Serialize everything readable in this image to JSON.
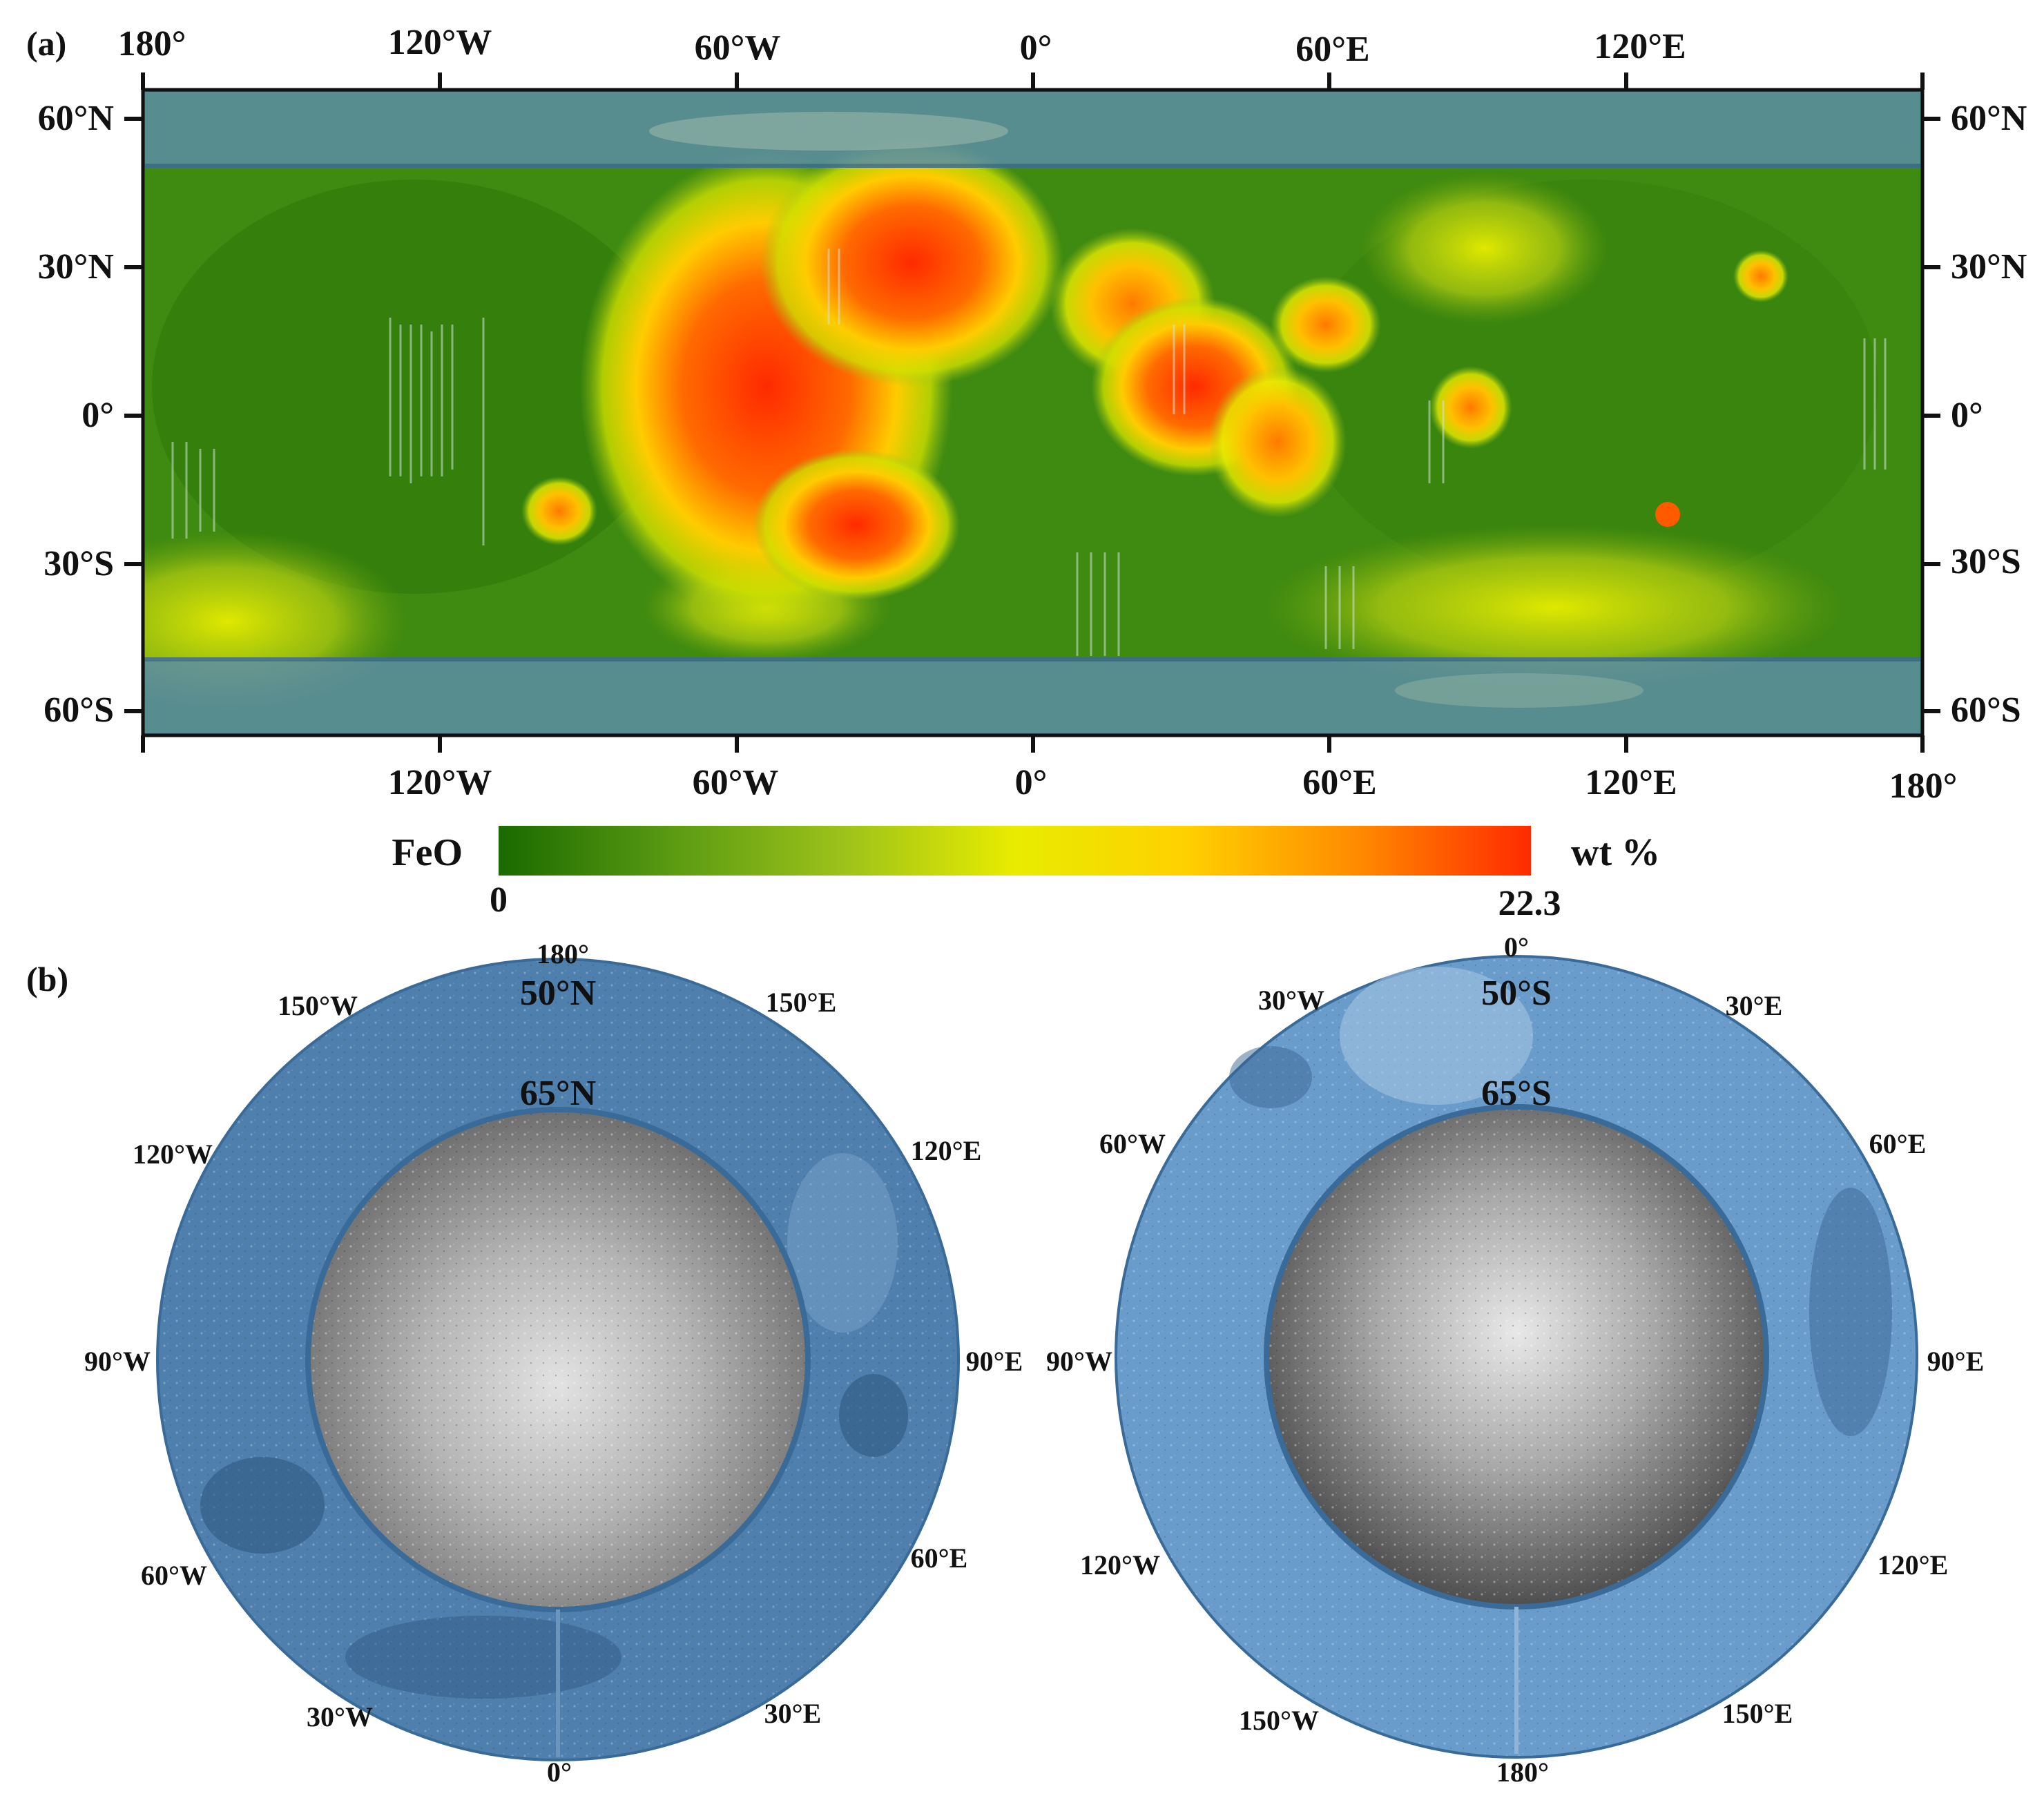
{
  "panel_a": {
    "label": "(a)",
    "top_lon_labels": [
      "180°",
      "120°W",
      "60°W",
      "0°",
      "60°E",
      "120°E"
    ],
    "bottom_lon_labels": [
      "120°W",
      "60°W",
      "0°",
      "60°E",
      "120°E",
      "180°"
    ],
    "left_lat_labels": [
      "60°N",
      "30°N",
      "0°",
      "30°S",
      "60°S"
    ],
    "right_lat_labels": [
      "60°N",
      "30°N",
      "0°",
      "30°S",
      "60°S"
    ],
    "masked_bands": [
      "50°N–70°N",
      "50°S–65°S"
    ]
  },
  "colorbar": {
    "variable": "FeO",
    "unit": "wt %",
    "min_label": "0",
    "max_label": "22.3",
    "min": 0,
    "max": 22.3,
    "colors": [
      "#1a6a00",
      "#5a9a12",
      "#9cc21a",
      "#e8ec00",
      "#ffd000",
      "#ff8a00",
      "#ff2a00"
    ]
  },
  "panel_b": {
    "label": "(b)",
    "north": {
      "outer_ring_label": "50°N",
      "inner_ring_label": "65°N",
      "lon_labels": [
        "180°",
        "150°E",
        "120°E",
        "90°E",
        "60°E",
        "30°E",
        "0°",
        "30°W",
        "60°W",
        "90°W",
        "120°W",
        "150°W"
      ]
    },
    "south": {
      "outer_ring_label": "50°S",
      "inner_ring_label": "65°S",
      "lon_labels": [
        "0°",
        "30°E",
        "60°E",
        "90°E",
        "120°E",
        "150°E",
        "180°",
        "150°W",
        "120°W",
        "90°W",
        "60°W",
        "30°W"
      ]
    }
  }
}
